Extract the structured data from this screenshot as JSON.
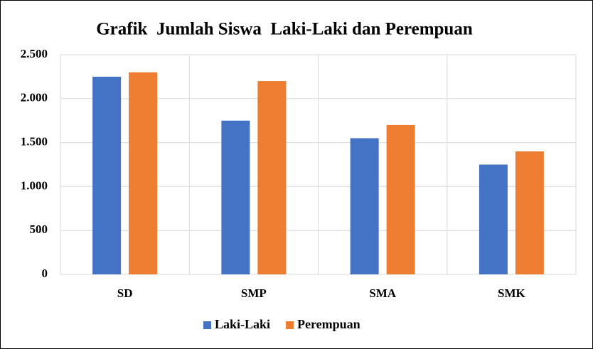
{
  "chart_data": {
    "type": "bar",
    "title": "Grafik  Jumlah Siswa  Laki-Laki dan Perempuan",
    "categories": [
      "SD",
      "SMP",
      "SMA",
      "SMK"
    ],
    "series": [
      {
        "name": "Laki-Laki",
        "color": "#4472c4",
        "values": [
          2250,
          1750,
          1550,
          1250
        ]
      },
      {
        "name": "Perempuan",
        "color": "#ed7d31",
        "values": [
          2300,
          2200,
          1700,
          1400
        ]
      }
    ],
    "ylim": [
      0,
      2500
    ],
    "yticks": [
      0,
      500,
      {
        "value": 1000,
        "label": "1.000"
      },
      {
        "value": 1500,
        "label": "1.500"
      },
      {
        "value": 2000,
        "label": "2.000"
      },
      {
        "value": 2500,
        "label": "2.500"
      }
    ],
    "grid": true,
    "legend": "bottom"
  }
}
